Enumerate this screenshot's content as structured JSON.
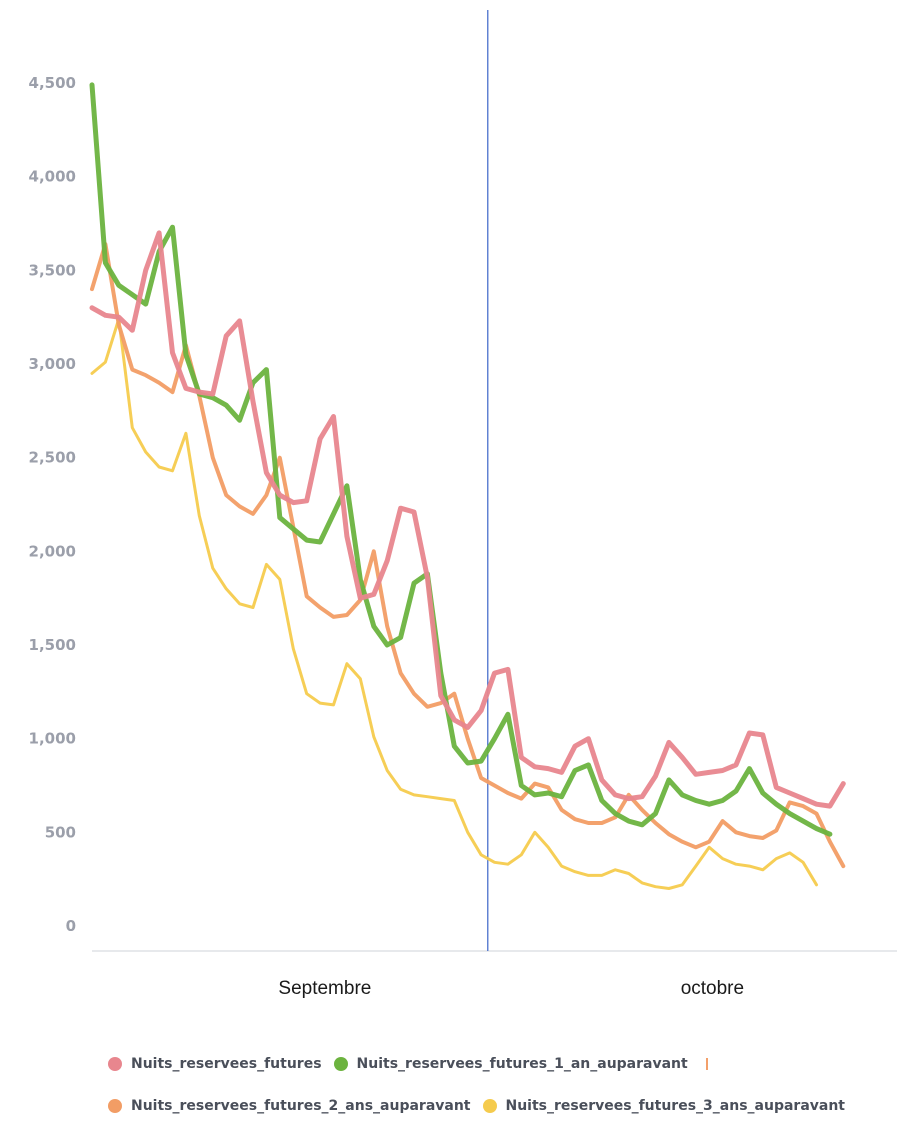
{
  "chart_data": {
    "type": "line",
    "title": "",
    "xlabel": "",
    "ylabel": "",
    "ylim": [
      0,
      4700
    ],
    "yticks": [
      0,
      500,
      1000,
      1500,
      2000,
      2500,
      3000,
      3500,
      4000,
      4500
    ],
    "ytick_labels": [
      "0",
      "500",
      "1,000",
      "1,500",
      "2,000",
      "2,500",
      "3,000",
      "3,500",
      "4,000",
      "4,500"
    ],
    "x_day_start": 1,
    "x_day_end": 61,
    "month_labels": [
      "Septembre",
      "octobre"
    ],
    "month_divider_day": 30.5,
    "legend_position": "bottom",
    "series": [
      {
        "name": "Nuits_reservees_futures",
        "color": "#e8868e",
        "values": [
          3300,
          3260,
          3250,
          3180,
          3500,
          3700,
          3060,
          2870,
          2850,
          2840,
          3150,
          3230,
          2800,
          2420,
          2300,
          2260,
          2270,
          2600,
          2720,
          2080,
          1750,
          1770,
          1950,
          2230,
          2210,
          1860,
          1230,
          1100,
          1060,
          1150,
          1350,
          1370,
          900,
          850,
          840,
          820,
          960,
          1000,
          780,
          700,
          680,
          690,
          800,
          980,
          900,
          810,
          820,
          830,
          860,
          1030,
          1020,
          740,
          710,
          680,
          650,
          640,
          760
        ]
      },
      {
        "name": "Nuits_reservees_futures_1_an_auparavant",
        "color": "#6cb33f",
        "values": [
          4490,
          3540,
          3420,
          3370,
          3320,
          3600,
          3730,
          3050,
          2840,
          2820,
          2780,
          2700,
          2900,
          2970,
          2180,
          2120,
          2060,
          2050,
          2200,
          2350,
          1850,
          1600,
          1500,
          1540,
          1830,
          1880,
          1350,
          960,
          870,
          880,
          1000,
          1130,
          750,
          700,
          710,
          690,
          830,
          860,
          670,
          600,
          560,
          540,
          600,
          780,
          700,
          670,
          650,
          670,
          720,
          840,
          710,
          650,
          600,
          560,
          520,
          490
        ]
      },
      {
        "name": "Nuits_reservees_futures_2_ans_auparavant",
        "color": "#f29d65",
        "values": [
          3400,
          3640,
          3210,
          2970,
          2940,
          2900,
          2850,
          3100,
          2830,
          2500,
          2300,
          2240,
          2200,
          2300,
          2500,
          2130,
          1760,
          1700,
          1650,
          1660,
          1740,
          2000,
          1600,
          1350,
          1240,
          1170,
          1190,
          1240,
          1000,
          790,
          750,
          710,
          680,
          760,
          740,
          620,
          570,
          550,
          550,
          580,
          700,
          620,
          550,
          490,
          450,
          420,
          450,
          560,
          500,
          480,
          470,
          510,
          660,
          640,
          600,
          450,
          320
        ]
      },
      {
        "name": "Nuits_reservees_futures_3_ans_auparavant",
        "color": "#f5cb4d",
        "values": [
          2950,
          3010,
          3240,
          2660,
          2530,
          2450,
          2430,
          2630,
          2190,
          1910,
          1800,
          1720,
          1700,
          1930,
          1850,
          1480,
          1240,
          1190,
          1180,
          1400,
          1320,
          1010,
          830,
          730,
          700,
          690,
          680,
          670,
          500,
          380,
          340,
          330,
          380,
          500,
          420,
          320,
          290,
          270,
          270,
          300,
          280,
          230,
          210,
          200,
          220,
          320,
          420,
          360,
          330,
          320,
          300,
          360,
          390,
          340,
          220
        ]
      }
    ]
  },
  "legend": {
    "items": [
      {
        "label": "Nuits_reservees_futures",
        "color": "#e8868e"
      },
      {
        "label": "Nuits_reservees_futures_1_an_auparavant",
        "color": "#6cb33f"
      },
      {
        "label": "Nuits_reservees_futures_2_ans_auparavant",
        "color": "#f29d65"
      },
      {
        "label": "Nuits_reservees_futures_3_ans_auparavant",
        "color": "#f5cb4d"
      }
    ]
  }
}
